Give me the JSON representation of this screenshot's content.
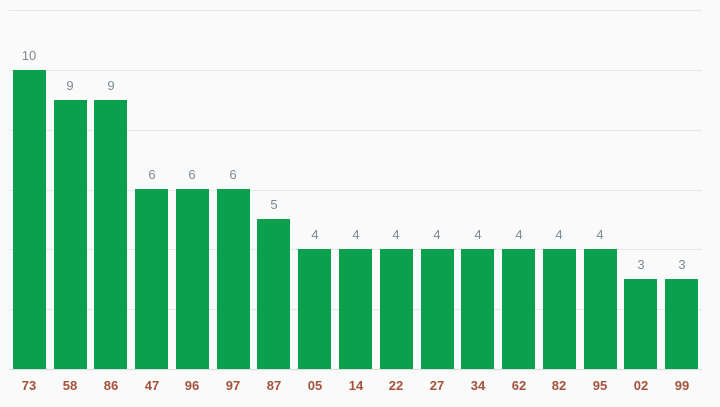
{
  "chart_data": {
    "type": "bar",
    "categories": [
      "73",
      "58",
      "86",
      "47",
      "96",
      "97",
      "87",
      "05",
      "14",
      "22",
      "27",
      "34",
      "62",
      "82",
      "95",
      "02",
      "99"
    ],
    "values": [
      10,
      9,
      9,
      6,
      6,
      6,
      5,
      4,
      4,
      4,
      4,
      4,
      4,
      4,
      4,
      3,
      3
    ],
    "title": "",
    "xlabel": "",
    "ylabel": "",
    "ylim": [
      0,
      12
    ],
    "gridline_step": 2,
    "grid": true,
    "legend_position": "none",
    "annotations_shown": true,
    "colors": {
      "bar": "#0aa04e",
      "x_label": "#a5523c",
      "annotation": "#7d8a93",
      "gridline": "#e6e6e6",
      "baseline": "#dcdcdc",
      "background": "#fafafa"
    }
  }
}
